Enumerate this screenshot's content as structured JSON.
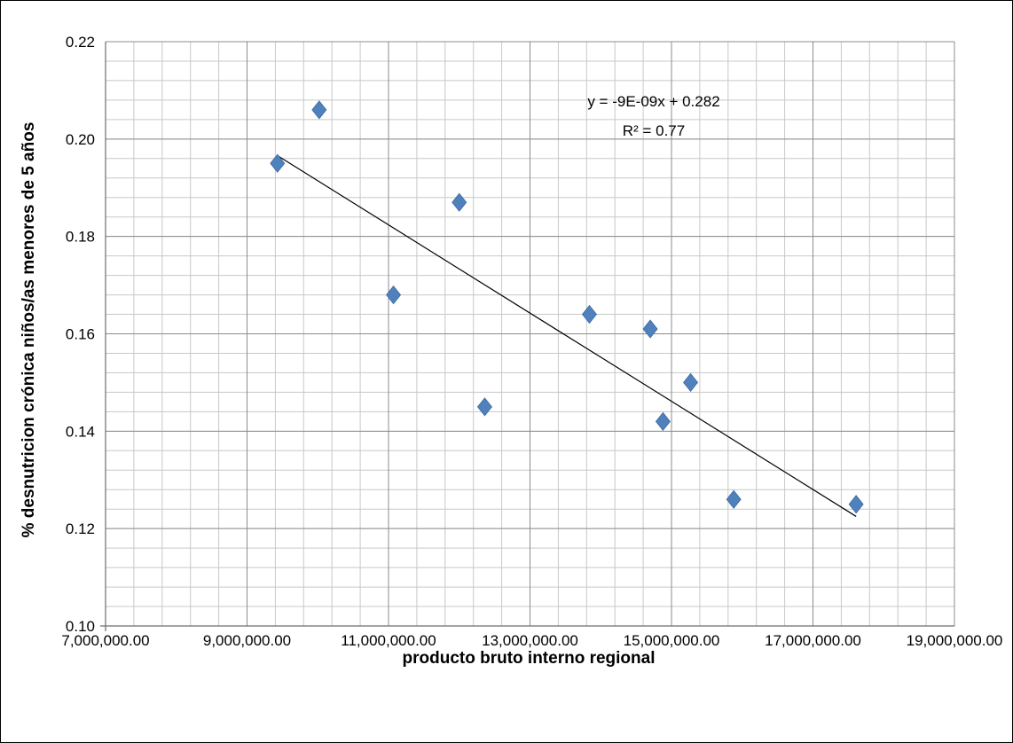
{
  "chart_data": {
    "type": "scatter",
    "title": "",
    "xlabel": "producto bruto interno regional",
    "ylabel": "% desnutricion crónica niños/as menores de 5 años",
    "xlim": [
      7000000,
      19000000
    ],
    "ylim": [
      0.1,
      0.22
    ],
    "x_ticks": [
      7000000,
      9000000,
      11000000,
      13000000,
      15000000,
      17000000,
      19000000
    ],
    "x_tick_labels": [
      "7,000,000.00",
      "9,000,000.00",
      "11,000,000.00",
      "13,000,000.00",
      "15,000,000.00",
      "17,000,000.00",
      "19,000,000.00"
    ],
    "y_ticks": [
      0.1,
      0.12,
      0.14,
      0.16,
      0.18,
      0.2,
      0.22
    ],
    "y_tick_labels": [
      "0.10",
      "0.12",
      "0.14",
      "0.16",
      "0.18",
      "0.20",
      "0.22"
    ],
    "grid": true,
    "legend": "none",
    "marker": "diamond",
    "marker_color": "#4f81bd",
    "points": [
      {
        "x": 9430000,
        "y": 0.195
      },
      {
        "x": 10020000,
        "y": 0.206
      },
      {
        "x": 11070000,
        "y": 0.168
      },
      {
        "x": 12000000,
        "y": 0.187
      },
      {
        "x": 12360000,
        "y": 0.145
      },
      {
        "x": 13840000,
        "y": 0.164
      },
      {
        "x": 14700000,
        "y": 0.161
      },
      {
        "x": 14880000,
        "y": 0.142
      },
      {
        "x": 15270000,
        "y": 0.15
      },
      {
        "x": 15880000,
        "y": 0.126
      },
      {
        "x": 17610000,
        "y": 0.125
      }
    ],
    "trendline": {
      "type": "linear",
      "x_start": 9430000,
      "x_end": 17610000,
      "y_start": 0.1966,
      "y_end": 0.1225,
      "color": "#000000",
      "equation": "y = -9E-09x + 0.282",
      "r2_label": "R² = 0.77"
    }
  }
}
